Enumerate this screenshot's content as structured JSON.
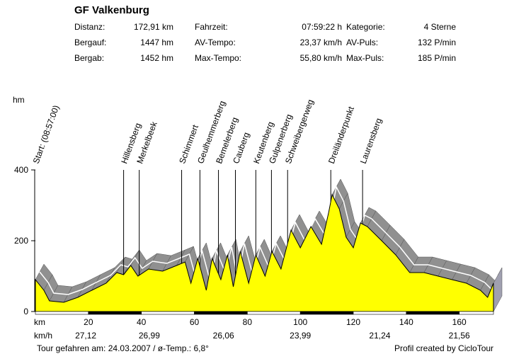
{
  "header": {
    "title": "GF Valkenburg",
    "stats": [
      [
        {
          "label": "Distanz:",
          "value": "172,91 km"
        },
        {
          "label": "Fahrzeit:",
          "value": "07:59:22 h"
        },
        {
          "label": "Kategorie:",
          "value": "4 Sterne"
        }
      ],
      [
        {
          "label": "Bergauf:",
          "value": "1447 hm"
        },
        {
          "label": "AV-Tempo:",
          "value": "23,37 km/h"
        },
        {
          "label": "AV-Puls:",
          "value": "132 P/min"
        }
      ],
      [
        {
          "label": "Bergab:",
          "value": "1452 hm"
        },
        {
          "label": "Max-Tempo:",
          "value": "55,80 km/h"
        },
        {
          "label": "Max-Puls:",
          "value": "185 P/min"
        }
      ]
    ]
  },
  "footer": {
    "left": "Tour gefahren am: 24.03.2007  /  ø-Temp.: 6,8°",
    "right": "Profil created by CicloTour"
  },
  "colors": {
    "fill": "#ffff00",
    "shadow": "#909090"
  },
  "chart_data": {
    "type": "area",
    "ylabel": "hm",
    "xlabel": "km",
    "speed_label": "km/h",
    "xlim": [
      0,
      172.91
    ],
    "ylim": [
      0,
      400
    ],
    "xticks": [
      20,
      40,
      60,
      80,
      100,
      120,
      140,
      160
    ],
    "yticks": [
      0,
      200,
      400
    ],
    "x": [
      0,
      3.2,
      5.3,
      10.7,
      16,
      21.3,
      26.7,
      30.7,
      33.3,
      36,
      38.7,
      42.7,
      48,
      53.3,
      56.5,
      58.7,
      61.3,
      64.5,
      66.7,
      70,
      72.5,
      74.7,
      77.3,
      80.5,
      83.2,
      86.7,
      89.3,
      92.7,
      96.5,
      100,
      104,
      108,
      110.7,
      112,
      114.7,
      117.3,
      120,
      122.7,
      125.3,
      130.7,
      136,
      141.3,
      146.7,
      152,
      157.3,
      162.7,
      168,
      170.7,
      172.9
    ],
    "y": [
      90,
      60,
      30,
      26,
      40,
      60,
      80,
      110,
      104,
      130,
      100,
      120,
      114,
      130,
      140,
      80,
      150,
      60,
      150,
      90,
      160,
      70,
      170,
      80,
      160,
      100,
      170,
      120,
      230,
      180,
      240,
      190,
      280,
      330,
      290,
      210,
      180,
      250,
      240,
      200,
      160,
      110,
      110,
      100,
      90,
      80,
      60,
      40,
      80
    ],
    "landmarks": [
      {
        "name": "Start: (08:57:00)",
        "km": 0
      },
      {
        "name": "Hillensberg",
        "km": 33.3
      },
      {
        "name": "Merkelbeek",
        "km": 39.2
      },
      {
        "name": "Schimmert",
        "km": 55.2
      },
      {
        "name": "Geulhemmerberg",
        "km": 62.1
      },
      {
        "name": "Bemelerberg",
        "km": 69.1
      },
      {
        "name": "Cauberg",
        "km": 75.5
      },
      {
        "name": "Keutenberg",
        "km": 83.2
      },
      {
        "name": "Gulpenerberg",
        "km": 89.1
      },
      {
        "name": "Schweibergerweg",
        "km": 95.2
      },
      {
        "name": "Dreiländerpunkt",
        "km": 111.5
      },
      {
        "name": "Laurensberg",
        "km": 123.5
      }
    ],
    "speeds": [
      {
        "km": 19,
        "value": "27,12"
      },
      {
        "km": 43,
        "value": "26,99"
      },
      {
        "km": 71,
        "value": "26,06"
      },
      {
        "km": 100,
        "value": "23,99"
      },
      {
        "km": 130,
        "value": "21,24"
      },
      {
        "km": 160,
        "value": "21,56"
      }
    ]
  }
}
